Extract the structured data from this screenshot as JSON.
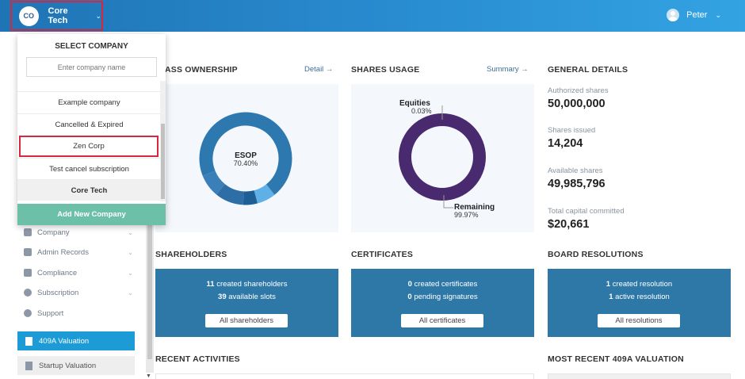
{
  "topbar": {
    "company_initials": "CO",
    "company_name": "Core Tech",
    "user_name": "Peter"
  },
  "company_dropdown": {
    "title": "SELECT COMPANY",
    "search_placeholder": "Enter company name",
    "items": [
      {
        "label": "Example company"
      },
      {
        "label": "Cancelled & Expired"
      },
      {
        "label": "Zen Corp"
      },
      {
        "label": "Test cancel subscription"
      },
      {
        "label": "Core Tech"
      }
    ],
    "add_button": "Add New Company"
  },
  "sidebar": {
    "items": [
      {
        "label": "Company",
        "icon": "building-icon"
      },
      {
        "label": "Admin Records",
        "icon": "records-icon"
      },
      {
        "label": "Compliance",
        "icon": "shield-icon"
      },
      {
        "label": "Subscription",
        "icon": "dollar-icon"
      },
      {
        "label": "Support",
        "icon": "support-icon"
      }
    ],
    "valuation_active": "409A Valuation",
    "valuation_startup": "Startup Valuation"
  },
  "class_ownership": {
    "title": "ASS OWNERSHIP",
    "detail_link": "Detail →",
    "center_label": "ESOP",
    "center_value": "70.40%",
    "segments_percent": [
      70.4,
      6.6,
      5.0,
      10.0,
      8.0
    ]
  },
  "shares_usage": {
    "title": "SHARES USAGE",
    "summary_link": "Summary →",
    "equities_label": "Equities",
    "equities_value": "0.03%",
    "remaining_label": "Remaining",
    "remaining_value": "99.97%",
    "equities_percent": 0.03
  },
  "general_details": {
    "title": "GENERAL DETAILS",
    "authorized_label": "Authorized shares",
    "authorized_value": "50,000,000",
    "issued_label": "Shares issued",
    "issued_value": "14,204",
    "available_label": "Available shares",
    "available_value": "49,985,796",
    "capital_label": "Total capital committed",
    "capital_value": "$20,661"
  },
  "shareholders": {
    "title": "SHAREHOLDERS",
    "line1_num": "11",
    "line1_text": " created shareholders",
    "line2_num": "39",
    "line2_text": " available slots",
    "button": "All shareholders"
  },
  "certificates": {
    "title": "CERTIFICATES",
    "line1_num": "0",
    "line1_text": " created certificates",
    "line2_num": "0",
    "line2_text": " pending signatures",
    "button": "All certificates"
  },
  "board_resolutions": {
    "title": "BOARD RESOLUTIONS",
    "line1_num": "1",
    "line1_text": " created resolution",
    "line2_num": "1",
    "line2_text": " active resolution",
    "button": "All resolutions"
  },
  "recent_activities": {
    "title": "RECENT ACTIVITIES"
  },
  "recent_409a": {
    "title": "MOST RECENT 409A VALUATION"
  },
  "colors": {
    "topbar": "#2a8fd3",
    "accent": "#1c9bd6",
    "card": "#2e78a8",
    "add_button": "#6cc0a7",
    "donut_main": "#2e78b0",
    "shares_ring": "#4a2a6e"
  }
}
